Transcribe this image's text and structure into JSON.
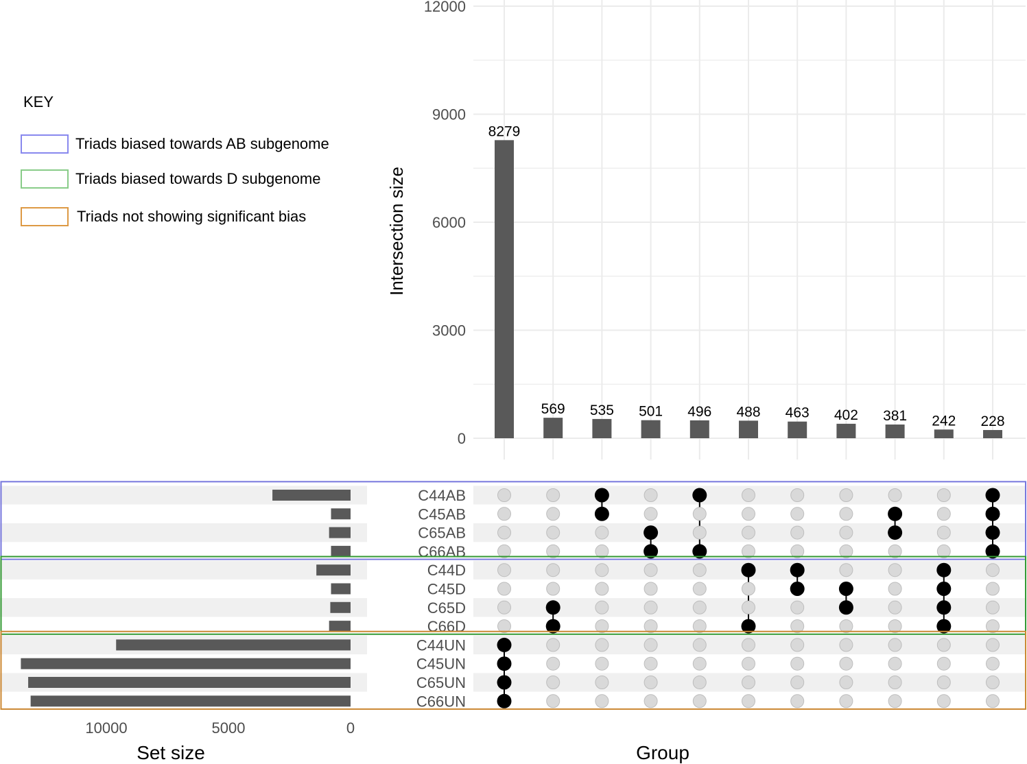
{
  "chart_data": {
    "type": "upset",
    "key_title": "KEY",
    "legend": [
      {
        "label": "Triads biased towards AB subgenome",
        "color": "#8888ee"
      },
      {
        "label": "Triads biased towards D subgenome",
        "color": "#88cc88"
      },
      {
        "label": "Triads not showing significant bias",
        "color": "#dd9944"
      }
    ],
    "group_frames": [
      {
        "color": "#7777dd",
        "sets": [
          "C44AB",
          "C45AB",
          "C65AB",
          "C66AB"
        ]
      },
      {
        "color": "#339933",
        "sets": [
          "C44D",
          "C45D",
          "C65D",
          "C66D"
        ]
      },
      {
        "color": "#cc8833",
        "sets": [
          "C44UN",
          "C45UN",
          "C65UN",
          "C66UN"
        ]
      }
    ],
    "sets": [
      "C44AB",
      "C45AB",
      "C65AB",
      "C66AB",
      "C44D",
      "C45D",
      "C65D",
      "C66D",
      "C44UN",
      "C45UN",
      "C65UN",
      "C66UN"
    ],
    "set_sizes": [
      3200,
      800,
      880,
      800,
      1400,
      800,
      830,
      880,
      9600,
      13500,
      13200,
      13100
    ],
    "set_size_axis": {
      "label": "Set size",
      "ticks": [
        "10000",
        "5000",
        "0"
      ],
      "tick_values": [
        10000,
        5000,
        0
      ]
    },
    "intersection_axis": {
      "label": "Intersection size",
      "ylim": [
        0,
        12000
      ],
      "ticks": [
        "0",
        "3000",
        "6000",
        "9000",
        "12000"
      ],
      "tick_values": [
        0,
        3000,
        6000,
        9000,
        12000
      ]
    },
    "x_label": "Group",
    "intersections": [
      {
        "value": 8279,
        "label": "8279",
        "sets": [
          "C44UN",
          "C45UN",
          "C65UN",
          "C66UN"
        ]
      },
      {
        "value": 569,
        "label": "569",
        "sets": [
          "C65D",
          "C66D"
        ]
      },
      {
        "value": 535,
        "label": "535",
        "sets": [
          "C44AB",
          "C45AB"
        ]
      },
      {
        "value": 501,
        "label": "501",
        "sets": [
          "C65AB",
          "C66AB"
        ]
      },
      {
        "value": 496,
        "label": "496",
        "sets": [
          "C44AB",
          "C66AB"
        ]
      },
      {
        "value": 488,
        "label": "488",
        "sets": [
          "C44D",
          "C66D"
        ]
      },
      {
        "value": 463,
        "label": "463",
        "sets": [
          "C44D",
          "C45D"
        ]
      },
      {
        "value": 402,
        "label": "402",
        "sets": [
          "C45D",
          "C65D"
        ]
      },
      {
        "value": 381,
        "label": "381",
        "sets": [
          "C45AB",
          "C65AB"
        ]
      },
      {
        "value": 242,
        "label": "242",
        "sets": [
          "C44D",
          "C45D",
          "C65D",
          "C66D"
        ]
      },
      {
        "value": 228,
        "label": "228",
        "sets": [
          "C44AB",
          "C45AB",
          "C65AB",
          "C66AB"
        ]
      }
    ],
    "colors": {
      "bar": "#595959",
      "dot_on": "#000000",
      "dot_off": "#d9d9d9",
      "dot_off_stroke": "#bdbdbd",
      "stripe": "#f0f0f0",
      "grid": "#ebebeb",
      "tick_text": "#4d4d4d"
    }
  }
}
